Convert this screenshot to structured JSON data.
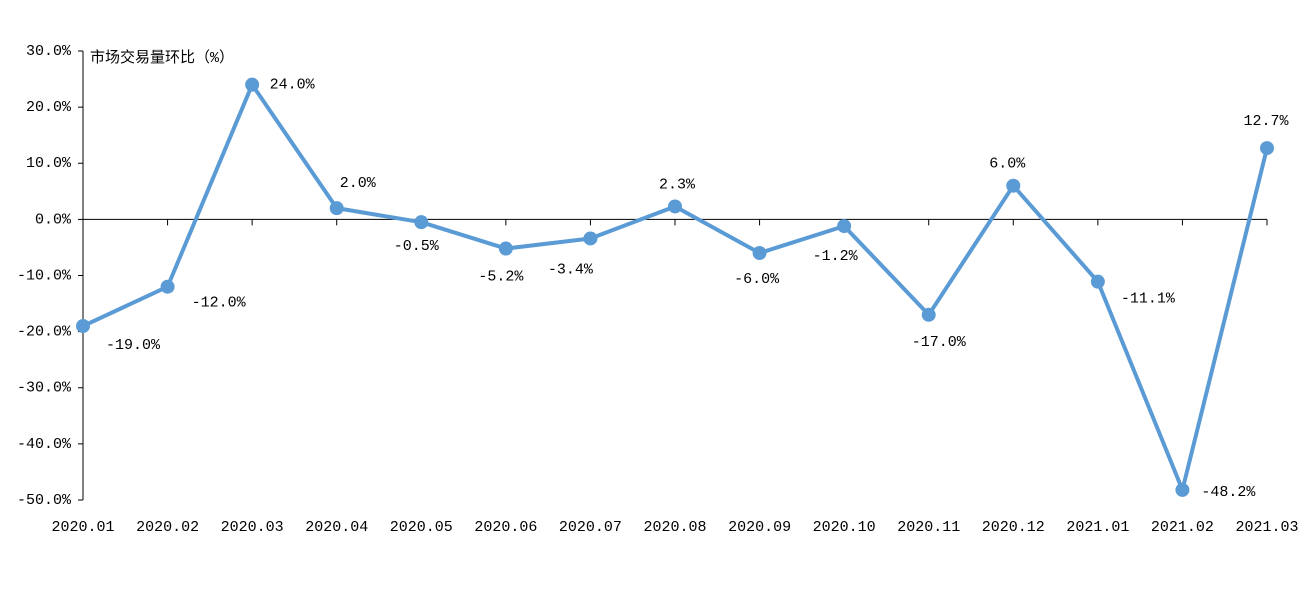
{
  "chart_data": {
    "type": "line",
    "y_label": "市场交易量环比（%）",
    "categories": [
      "2020.01",
      "2020.02",
      "2020.03",
      "2020.04",
      "2020.05",
      "2020.06",
      "2020.07",
      "2020.08",
      "2020.09",
      "2020.10",
      "2020.11",
      "2020.12",
      "2021.01",
      "2021.02",
      "2021.03"
    ],
    "series": [
      {
        "color": "#5b9bd5",
        "values": [
          -19.0,
          -12.0,
          24.0,
          2.0,
          -0.5,
          -5.2,
          -3.4,
          2.3,
          -6.0,
          -1.2,
          -17.0,
          6.0,
          -11.1,
          -48.2,
          12.7
        ],
        "value_labels": [
          "-19.0%",
          "-12.0%",
          "24.0%",
          "2.0%",
          "-0.5%",
          "-5.2%",
          "-3.4%",
          "2.3%",
          "-6.0%",
          "-1.2%",
          "-17.0%",
          "6.0%",
          "-11.1%",
          "-48.2%",
          "12.7%"
        ]
      }
    ],
    "ylim": [
      -50,
      30
    ],
    "yticks": [
      {
        "value": -50,
        "label": "-50.0%"
      },
      {
        "value": -40,
        "label": "-40.0%"
      },
      {
        "value": -30,
        "label": "-30.0%"
      },
      {
        "value": -20,
        "label": "-20.0%"
      },
      {
        "value": -10,
        "label": "-10.0%"
      },
      {
        "value": 0,
        "label": "0.0%"
      },
      {
        "value": 10,
        "label": "10.0%"
      },
      {
        "value": 20,
        "label": "20.0%"
      },
      {
        "value": 30,
        "label": "30.0%"
      }
    ],
    "grid": false
  }
}
